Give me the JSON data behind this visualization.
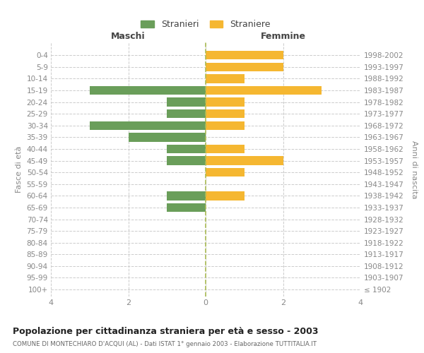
{
  "age_groups": [
    "100+",
    "95-99",
    "90-94",
    "85-89",
    "80-84",
    "75-79",
    "70-74",
    "65-69",
    "60-64",
    "55-59",
    "50-54",
    "45-49",
    "40-44",
    "35-39",
    "30-34",
    "25-29",
    "20-24",
    "15-19",
    "10-14",
    "5-9",
    "0-4"
  ],
  "birth_years": [
    "≤ 1902",
    "1903-1907",
    "1908-1912",
    "1913-1917",
    "1918-1922",
    "1923-1927",
    "1928-1932",
    "1933-1937",
    "1938-1942",
    "1943-1947",
    "1948-1952",
    "1953-1957",
    "1958-1962",
    "1963-1967",
    "1968-1972",
    "1973-1977",
    "1978-1982",
    "1983-1987",
    "1988-1992",
    "1993-1997",
    "1998-2002"
  ],
  "maschi": [
    0,
    0,
    0,
    0,
    0,
    0,
    0,
    1,
    1,
    0,
    0,
    1,
    1,
    2,
    3,
    1,
    1,
    3,
    0,
    0,
    0
  ],
  "femmine": [
    0,
    0,
    0,
    0,
    0,
    0,
    0,
    0,
    1,
    0,
    1,
    2,
    1,
    0,
    1,
    1,
    1,
    3,
    1,
    2,
    2
  ],
  "male_color": "#6a9e5a",
  "female_color": "#f5b731",
  "title": "Popolazione per cittadinanza straniera per età e sesso - 2003",
  "subtitle": "COMUNE DI MONTECHIARO D'ACQUI (AL) - Dati ISTAT 1° gennaio 2003 - Elaborazione TUTTITALIA.IT",
  "xlabel_left": "Maschi",
  "xlabel_right": "Femmine",
  "ylabel_left": "Fasce di età",
  "ylabel_right": "Anni di nascita",
  "legend_male": "Stranieri",
  "legend_female": "Straniere",
  "xlim": 4,
  "background_color": "#ffffff",
  "grid_color": "#cccccc",
  "label_color": "#888888"
}
